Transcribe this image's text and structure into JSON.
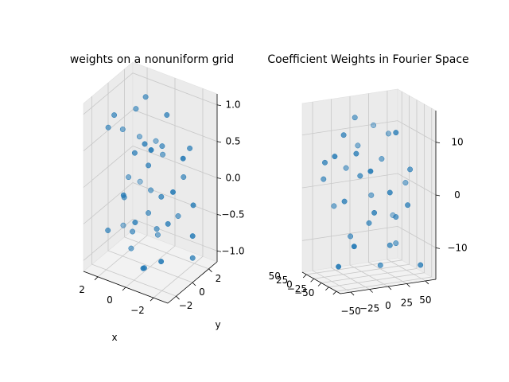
{
  "chart_data": [
    {
      "type": "scatter",
      "title": "weights on a nonuniform grid",
      "xlabel": "x",
      "ylabel": "y",
      "zlabel": "",
      "xlim": [
        -3.3,
        3.3
      ],
      "ylim": [
        -3.3,
        3.3
      ],
      "zlim": [
        -1.15,
        1.15
      ],
      "x_ticks": [
        "−2",
        "0",
        "2"
      ],
      "y_ticks": [
        "−2",
        "0",
        "2"
      ],
      "z_ticks": [
        "−1.0",
        "−0.5",
        "0.0",
        "0.5",
        "1.0"
      ],
      "grid": true,
      "marker_color": "#1f77b4",
      "points": [
        [
          0.6,
          0.4,
          1.1
        ],
        [
          1.6,
          -2.1,
          1.0
        ],
        [
          1.3,
          0.3,
          0.9
        ],
        [
          -1.7,
          -2.8,
          0.8
        ],
        [
          -0.5,
          -1.6,
          0.7
        ],
        [
          2.1,
          -0.1,
          0.6
        ],
        [
          0.4,
          -1.4,
          0.5
        ],
        [
          -0.4,
          0.9,
          0.45
        ],
        [
          -1.8,
          2.2,
          0.4
        ],
        [
          -0.2,
          -0.6,
          0.3
        ],
        [
          1.2,
          2.8,
          0.25
        ],
        [
          0.2,
          2.0,
          0.2
        ],
        [
          -2.3,
          -0.9,
          0.1
        ],
        [
          0.4,
          -2.9,
          0.05
        ],
        [
          -1.2,
          2.4,
          -0.05
        ],
        [
          2.0,
          0.5,
          -0.1
        ],
        [
          -0.8,
          0.1,
          -0.15
        ],
        [
          1.4,
          -1.1,
          -0.2
        ],
        [
          -2.6,
          1.3,
          -0.25
        ],
        [
          0.9,
          1.6,
          -0.3
        ],
        [
          -0.1,
          -2.2,
          -0.35
        ],
        [
          2.5,
          2.9,
          -0.4
        ],
        [
          -1.5,
          -0.2,
          -0.45
        ],
        [
          0.5,
          0.6,
          -0.5
        ],
        [
          1.8,
          -2.6,
          -0.55
        ],
        [
          -2.9,
          0.7,
          -0.6
        ],
        [
          -0.6,
          2.7,
          -0.65
        ],
        [
          1.1,
          -0.5,
          -0.7
        ],
        [
          0.2,
          1.2,
          -0.75
        ],
        [
          -1.9,
          -1.8,
          -0.8
        ],
        [
          2.7,
          1.0,
          -0.85
        ],
        [
          -0.9,
          -2.5,
          -0.9
        ],
        [
          0.7,
          2.2,
          -0.95
        ],
        [
          1.5,
          0.0,
          -1.0
        ],
        [
          -2.2,
          1.9,
          -1.05
        ],
        [
          0.0,
          -0.8,
          -1.1
        ],
        [
          -1.0,
          0.5,
          0.95
        ],
        [
          2.3,
          -1.7,
          0.75
        ],
        [
          -2.8,
          -0.4,
          0.55
        ],
        [
          1.9,
          1.8,
          0.35
        ]
      ]
    },
    {
      "type": "scatter",
      "title": "Coefficient Weights in Fourier Space",
      "xlabel": "",
      "ylabel": "",
      "zlabel": "",
      "xlim": [
        -64,
        64
      ],
      "ylim": [
        -64,
        64
      ],
      "zlim": [
        -16,
        16
      ],
      "x_ticks": [
        "−50",
        "−25",
        "0",
        "25",
        "50"
      ],
      "y_ticks": [
        "−50",
        "−25",
        "0",
        "25",
        "50"
      ],
      "z_ticks": [
        "−10",
        "0",
        "10"
      ],
      "grid": true,
      "marker_color": "#1f77b4",
      "points": [
        [
          -40,
          20,
          12
        ],
        [
          10,
          -30,
          11
        ],
        [
          35,
          40,
          9
        ],
        [
          -10,
          -50,
          8
        ],
        [
          50,
          5,
          7
        ],
        [
          -55,
          -20,
          6
        ],
        [
          20,
          25,
          5
        ],
        [
          -25,
          45,
          4
        ],
        [
          5,
          -10,
          3
        ],
        [
          40,
          -45,
          2
        ],
        [
          -45,
          10,
          1
        ],
        [
          15,
          55,
          0
        ],
        [
          -5,
          -35,
          -1
        ],
        [
          30,
          15,
          -2
        ],
        [
          -30,
          -5,
          -3
        ],
        [
          55,
          -25,
          -4
        ],
        [
          -15,
          30,
          -5
        ],
        [
          0,
          0,
          -6
        ],
        [
          45,
          50,
          -7
        ],
        [
          -50,
          -40,
          -8
        ],
        [
          25,
          -15,
          -9
        ],
        [
          -20,
          20,
          -10
        ],
        [
          10,
          40,
          -11
        ],
        [
          -35,
          -55,
          -12
        ],
        [
          60,
          30,
          10
        ],
        [
          -60,
          45,
          -13
        ],
        [
          35,
          -5,
          13
        ],
        [
          -8,
          12,
          -14
        ],
        [
          18,
          -52,
          6
        ],
        [
          -42,
          35,
          -2
        ],
        [
          52,
          -10,
          3
        ],
        [
          -12,
          -22,
          8
        ]
      ]
    }
  ]
}
